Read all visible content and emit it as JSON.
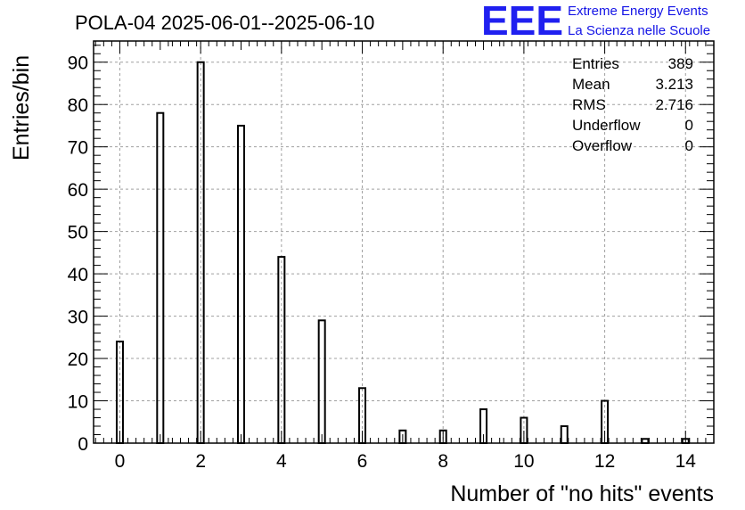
{
  "chart_data": {
    "type": "bar",
    "title": "POLA-04 2025-06-01--2025-06-10",
    "xlabel": "Number of \"no hits\" events",
    "ylabel": "Entries/bin",
    "x": [
      0,
      1,
      2,
      3,
      4,
      5,
      6,
      7,
      8,
      9,
      10,
      11,
      12,
      13,
      14
    ],
    "values": [
      24,
      78,
      90,
      75,
      44,
      29,
      13,
      3,
      3,
      8,
      6,
      4,
      10,
      1,
      1
    ],
    "xlim": [
      -0.65,
      14.7
    ],
    "ylim": [
      0,
      95
    ],
    "x_ticks": [
      0,
      2,
      4,
      6,
      8,
      10,
      12,
      14
    ],
    "y_ticks": [
      0,
      10,
      20,
      30,
      40,
      50,
      60,
      70,
      80,
      90
    ],
    "grid": true,
    "legend": "none",
    "stats": {
      "rows": [
        {
          "label": "Entries",
          "value": "389"
        },
        {
          "label": "Mean",
          "value": "3.213"
        },
        {
          "label": "RMS",
          "value": "2.716"
        },
        {
          "label": "Underflow",
          "value": "0"
        },
        {
          "label": "Overflow",
          "value": "0"
        }
      ],
      "placement": "top-right"
    }
  },
  "logo": {
    "mark": "EEE",
    "line1": "Extreme Energy Events",
    "line2": "La Scienza nelle Scuole",
    "color": "#1414e6"
  }
}
